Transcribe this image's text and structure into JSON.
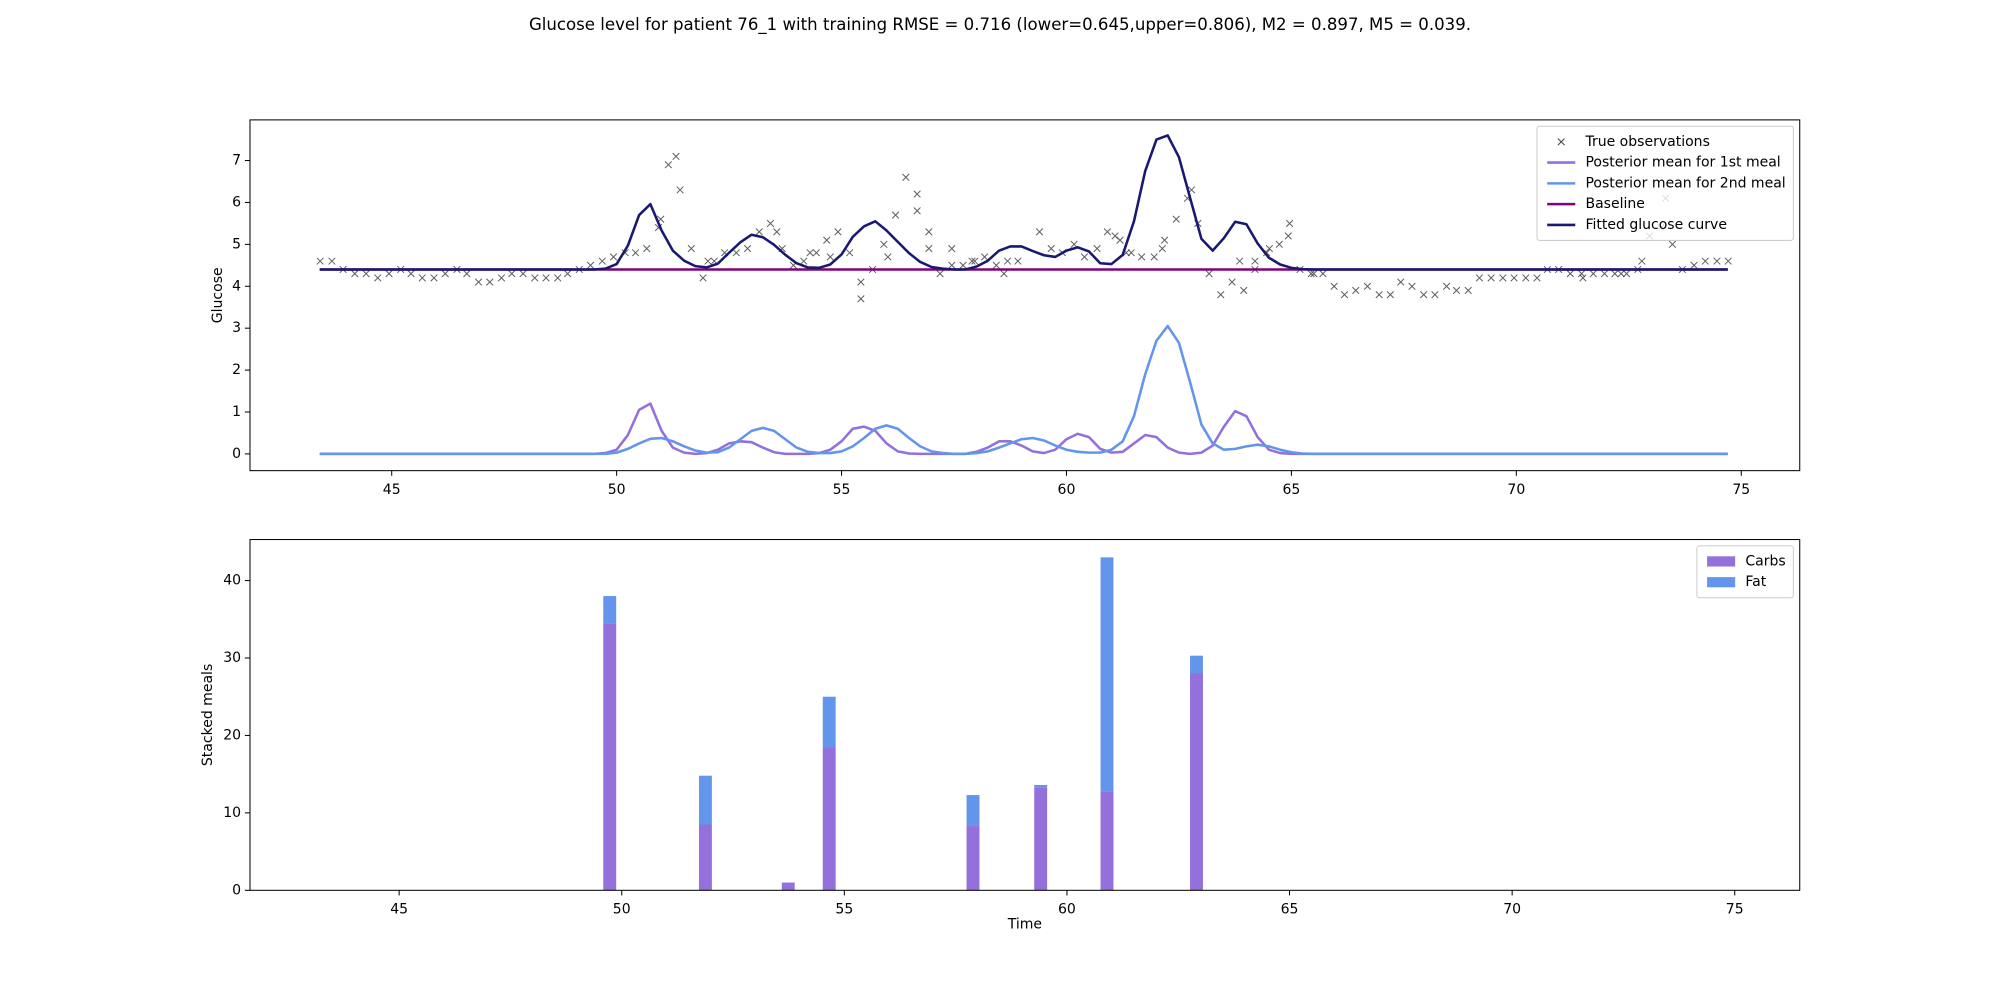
{
  "title": "Glucose level for patient 76_1 with training RMSE = 0.716 (lower=0.645,upper=0.806), M2 = 0.897, M5 = 0.039.",
  "chart_data": [
    {
      "type": "line",
      "ylabel": "Glucose",
      "xlim": [
        41.85,
        76.3
      ],
      "ylim": [
        -0.4,
        7.97
      ],
      "xticks": [
        45,
        50,
        55,
        60,
        65,
        70,
        75
      ],
      "yticks": [
        0,
        1,
        2,
        3,
        4,
        5,
        6,
        7
      ],
      "legend": "upper right",
      "x": [
        43.4,
        49.0,
        49.5,
        49.75,
        50.0,
        50.25,
        50.5,
        50.75,
        51.0,
        51.25,
        51.5,
        51.75,
        52.0,
        52.25,
        52.5,
        52.75,
        53.0,
        53.25,
        53.5,
        53.75,
        54.0,
        54.25,
        54.5,
        54.75,
        55.0,
        55.25,
        55.5,
        55.75,
        56.0,
        56.25,
        56.5,
        56.75,
        57.0,
        57.25,
        57.5,
        57.75,
        58.0,
        58.25,
        58.5,
        58.75,
        59.0,
        59.25,
        59.5,
        59.75,
        60.0,
        60.25,
        60.5,
        60.75,
        61.0,
        61.25,
        61.5,
        61.75,
        62.0,
        62.25,
        62.5,
        62.75,
        63.0,
        63.25,
        63.5,
        63.75,
        64.0,
        64.25,
        64.5,
        64.75,
        65.0,
        65.25,
        65.5,
        66.0,
        74.7
      ],
      "series": [
        {
          "name": "True observations",
          "type": "scatter",
          "color": "#444444",
          "x": [
            43.41,
            43.67,
            43.92,
            44.18,
            44.43,
            44.69,
            44.94,
            45.2,
            45.43,
            45.68,
            45.94,
            46.19,
            46.45,
            46.67,
            46.93,
            47.18,
            47.44,
            47.67,
            47.92,
            48.18,
            48.43,
            48.69,
            48.91,
            49.17,
            49.42,
            49.68,
            49.93,
            50.19,
            50.42,
            50.67,
            50.93,
            50.98,
            51.15,
            51.32,
            51.41,
            51.66,
            51.92,
            52.03,
            52.17,
            52.4,
            52.66,
            52.91,
            53.17,
            53.42,
            53.56,
            53.68,
            53.93,
            54.16,
            54.3,
            54.44,
            54.67,
            54.75,
            54.92,
            55.18,
            55.43,
            55.43,
            55.69,
            55.94,
            56.03,
            56.2,
            56.43,
            56.68,
            56.68,
            56.94,
            56.94,
            57.19,
            57.45,
            57.45,
            57.7,
            57.9,
            57.96,
            58.18,
            58.44,
            58.61,
            58.69,
            58.92,
            59.4,
            59.66,
            59.91,
            60.17,
            60.4,
            60.68,
            60.91,
            61.08,
            61.19,
            61.33,
            61.44,
            61.67,
            61.95,
            62.13,
            62.18,
            62.44,
            62.69,
            62.78,
            62.92,
            63.17,
            63.43,
            63.68,
            63.85,
            63.94,
            64.19,
            64.19,
            64.45,
            64.51,
            64.73,
            64.93,
            64.96,
            65.19,
            65.44,
            65.5,
            65.7,
            65.95,
            66.18,
            66.43,
            66.69,
            66.95,
            67.2,
            67.43,
            67.68,
            67.94,
            68.19,
            68.45,
            68.67,
            68.93,
            69.18,
            69.44,
            69.7,
            69.95,
            70.21,
            70.46,
            70.69,
            70.94,
            71.2,
            71.45,
            71.48,
            71.71,
            71.96,
            72.19,
            72.33,
            72.45,
            72.7,
            72.79,
            72.96,
            73.21,
            73.32,
            73.47,
            73.69,
            73.95,
            74.2,
            74.46,
            74.71
          ],
          "values": [
            4.6,
            4.6,
            4.4,
            4.3,
            4.3,
            4.2,
            4.3,
            4.4,
            4.3,
            4.2,
            4.2,
            4.3,
            4.4,
            4.3,
            4.1,
            4.1,
            4.2,
            4.3,
            4.3,
            4.2,
            4.2,
            4.2,
            4.3,
            4.4,
            4.5,
            4.6,
            4.7,
            4.8,
            4.8,
            4.9,
            5.4,
            5.6,
            6.9,
            7.1,
            6.3,
            4.9,
            4.2,
            4.6,
            4.6,
            4.8,
            4.8,
            4.9,
            5.3,
            5.5,
            5.3,
            4.9,
            4.5,
            4.6,
            4.8,
            4.8,
            5.1,
            4.7,
            5.3,
            4.8,
            4.1,
            3.7,
            4.4,
            5.0,
            4.7,
            5.7,
            6.6,
            6.2,
            5.8,
            5.3,
            4.9,
            4.3,
            4.9,
            4.5,
            4.5,
            4.6,
            4.6,
            4.7,
            4.5,
            4.3,
            4.6,
            4.6,
            5.3,
            4.9,
            4.8,
            5.0,
            4.7,
            4.9,
            5.3,
            5.2,
            5.1,
            4.8,
            4.8,
            4.7,
            4.7,
            4.9,
            5.1,
            5.6,
            6.1,
            6.3,
            5.5,
            4.3,
            3.8,
            4.1,
            4.6,
            3.9,
            4.6,
            4.4,
            4.8,
            4.9,
            5.0,
            5.2,
            5.5,
            4.4,
            4.3,
            4.3,
            4.3,
            4.0,
            3.8,
            3.9,
            4.0,
            3.8,
            3.8,
            4.1,
            4.0,
            3.8,
            3.8,
            4.0,
            3.9,
            3.9,
            4.2,
            4.2,
            4.2,
            4.2,
            4.2,
            4.2,
            4.4,
            4.4,
            4.3,
            4.3,
            4.2,
            4.3,
            4.3,
            4.3,
            4.3,
            4.3,
            4.4,
            4.6,
            5.2,
            5.4,
            6.1,
            5.0,
            4.4,
            4.5,
            4.6,
            4.6,
            4.6
          ]
        },
        {
          "name": "Posterior mean for 1st meal",
          "color": "#9370db",
          "values": [
            0,
            0,
            0,
            0.02,
            0.1,
            0.45,
            1.05,
            1.2,
            0.55,
            0.15,
            0.03,
            0,
            0.02,
            0.1,
            0.25,
            0.3,
            0.28,
            0.15,
            0.04,
            0,
            0,
            0,
            0.02,
            0.1,
            0.3,
            0.6,
            0.65,
            0.55,
            0.25,
            0.06,
            0.01,
            0,
            0,
            0,
            0,
            0,
            0.05,
            0.15,
            0.3,
            0.3,
            0.2,
            0.06,
            0.02,
            0.1,
            0.35,
            0.48,
            0.4,
            0.12,
            0.03,
            0.05,
            0.25,
            0.45,
            0.4,
            0.15,
            0.03,
            0,
            0.03,
            0.2,
            0.65,
            1.02,
            0.9,
            0.4,
            0.1,
            0.02,
            0,
            0,
            0,
            0,
            0
          ]
        },
        {
          "name": "Posterior mean for 2nd meal",
          "color": "#6495ed",
          "values": [
            0,
            0,
            0,
            0,
            0.03,
            0.12,
            0.25,
            0.36,
            0.38,
            0.3,
            0.18,
            0.08,
            0.03,
            0.04,
            0.15,
            0.35,
            0.55,
            0.62,
            0.55,
            0.35,
            0.15,
            0.05,
            0.02,
            0.02,
            0.06,
            0.18,
            0.38,
            0.6,
            0.68,
            0.6,
            0.38,
            0.18,
            0.06,
            0.02,
            0,
            0,
            0.02,
            0.06,
            0.15,
            0.25,
            0.35,
            0.38,
            0.32,
            0.2,
            0.1,
            0.05,
            0.03,
            0.03,
            0.1,
            0.3,
            0.9,
            1.9,
            2.7,
            3.05,
            2.65,
            1.7,
            0.7,
            0.25,
            0.1,
            0.12,
            0.18,
            0.22,
            0.18,
            0.1,
            0.04,
            0.01,
            0,
            0,
            0
          ]
        },
        {
          "name": "Baseline",
          "color": "#800080",
          "values": [
            4.4,
            4.4,
            4.4,
            4.4,
            4.4,
            4.4,
            4.4,
            4.4,
            4.4,
            4.4,
            4.4,
            4.4,
            4.4,
            4.4,
            4.4,
            4.4,
            4.4,
            4.4,
            4.4,
            4.4,
            4.4,
            4.4,
            4.4,
            4.4,
            4.4,
            4.4,
            4.4,
            4.4,
            4.4,
            4.4,
            4.4,
            4.4,
            4.4,
            4.4,
            4.4,
            4.4,
            4.4,
            4.4,
            4.4,
            4.4,
            4.4,
            4.4,
            4.4,
            4.4,
            4.4,
            4.4,
            4.4,
            4.4,
            4.4,
            4.4,
            4.4,
            4.4,
            4.4,
            4.4,
            4.4,
            4.4,
            4.4,
            4.4,
            4.4,
            4.4,
            4.4,
            4.4,
            4.4,
            4.4,
            4.4,
            4.4,
            4.4,
            4.4,
            4.4
          ]
        },
        {
          "name": "Fitted glucose curve",
          "color": "#191970",
          "values": [
            4.4,
            4.4,
            4.4,
            4.42,
            4.53,
            4.97,
            5.7,
            5.96,
            5.33,
            4.85,
            4.61,
            4.48,
            4.45,
            4.54,
            4.8,
            5.05,
            5.23,
            5.17,
            4.99,
            4.75,
            4.55,
            4.45,
            4.44,
            4.52,
            4.76,
            5.18,
            5.43,
            5.55,
            5.33,
            5.06,
            4.79,
            4.58,
            4.46,
            4.42,
            4.4,
            4.4,
            4.47,
            4.61,
            4.85,
            4.95,
            4.95,
            4.84,
            4.74,
            4.7,
            4.85,
            4.93,
            4.83,
            4.55,
            4.53,
            4.75,
            5.55,
            6.75,
            7.5,
            7.6,
            7.08,
            6.1,
            5.13,
            4.85,
            5.15,
            5.54,
            5.48,
            5.02,
            4.68,
            4.52,
            4.44,
            4.41,
            4.4,
            4.4,
            4.4
          ]
        }
      ]
    },
    {
      "type": "bar",
      "stacked": true,
      "ylabel": "Stacked meals",
      "xlabel": "Time",
      "xlim": [
        41.65,
        76.46
      ],
      "ylim": [
        0,
        45.3
      ],
      "xticks": [
        45,
        50,
        55,
        60,
        65,
        70,
        75
      ],
      "yticks": [
        0,
        10,
        20,
        30,
        40
      ],
      "legend": "upper right",
      "x": [
        49.73,
        51.88,
        53.74,
        54.66,
        57.89,
        59.41,
        60.9,
        62.91
      ],
      "series": [
        {
          "name": "Carbs",
          "color": "#9370db",
          "values": [
            34.5,
            8.5,
            1.0,
            18.5,
            8.3,
            13.3,
            12.8,
            28
          ]
        },
        {
          "name": "Fat",
          "color": "#6495ed",
          "values": [
            3.5,
            6.3,
            0,
            6.5,
            4,
            0.3,
            30.2,
            2.3
          ]
        }
      ]
    }
  ]
}
